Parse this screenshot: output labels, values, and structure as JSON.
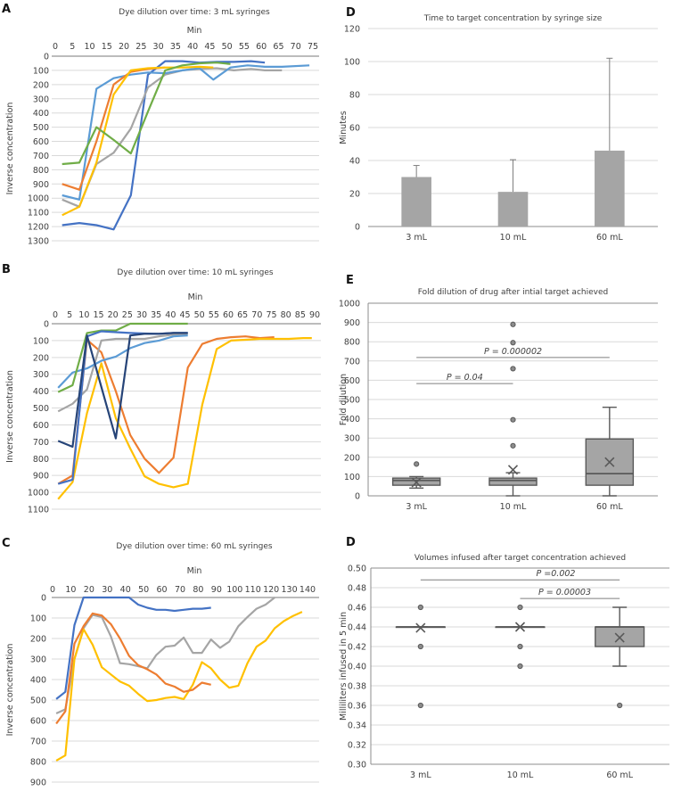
{
  "chart_data": [
    {
      "panel": "A",
      "type": "line",
      "title": "Dye dilution over time: 3 mL syringes",
      "xlabel": "Min",
      "ylabel": "Inverse concentration",
      "x_axis_position": "top",
      "y_inverted": true,
      "grid": true,
      "xlim": [
        0,
        75
      ],
      "ylim": [
        0,
        1300
      ],
      "xticks": [
        "0",
        "5",
        "10",
        "15",
        "20",
        "25",
        "30",
        "35",
        "40",
        "45",
        "50",
        "55",
        "60",
        "65",
        "70",
        "75"
      ],
      "yticks": [
        "0",
        "100",
        "200",
        "300",
        "400",
        "500",
        "600",
        "700",
        "800",
        "900",
        "1000",
        "1100",
        "1200",
        "1300"
      ],
      "series": [
        {
          "color": "#4472C4",
          "x": [
            2,
            7,
            12,
            17,
            22,
            27,
            32,
            37,
            42,
            47,
            52,
            57,
            61
          ],
          "y": [
            1190,
            1175,
            1190,
            1220,
            980,
            130,
            35,
            35,
            45,
            40,
            40,
            35,
            45
          ]
        },
        {
          "color": "#A5A5A5",
          "x": [
            2,
            7,
            12,
            17,
            22,
            27,
            32,
            37,
            42,
            47,
            52,
            57,
            61,
            66
          ],
          "y": [
            1010,
            1060,
            760,
            680,
            510,
            220,
            130,
            100,
            90,
            85,
            100,
            90,
            100,
            100
          ]
        },
        {
          "color": "#5B9BD5",
          "x": [
            2,
            7,
            12,
            17,
            22,
            27,
            32,
            37,
            42,
            46,
            51,
            56,
            61,
            66,
            74
          ],
          "y": [
            980,
            1010,
            230,
            155,
            130,
            115,
            120,
            100,
            85,
            165,
            80,
            65,
            75,
            75,
            65
          ]
        },
        {
          "color": "#ED7D31",
          "x": [
            2,
            7,
            12,
            17,
            22,
            27,
            32
          ],
          "y": [
            900,
            940,
            600,
            200,
            110,
            90,
            80
          ]
        },
        {
          "color": "#FFC000",
          "x": [
            2,
            7,
            12,
            17,
            22,
            27,
            32,
            37,
            42,
            46
          ],
          "y": [
            1120,
            1060,
            750,
            270,
            100,
            85,
            80,
            80,
            75,
            80
          ]
        },
        {
          "color": "#70AD47",
          "x": [
            2,
            7,
            12,
            17,
            22,
            27,
            32,
            37,
            42,
            47,
            51
          ],
          "y": [
            760,
            750,
            500,
            590,
            685,
            390,
            100,
            65,
            50,
            45,
            55
          ]
        }
      ]
    },
    {
      "panel": "B",
      "type": "line",
      "title": "Dye dilution over time: 10 mL syringes",
      "xlabel": "Min",
      "ylabel": "Inverse concentration",
      "x_axis_position": "top",
      "y_inverted": true,
      "grid": true,
      "xlim": [
        0,
        90
      ],
      "ylim": [
        0,
        1100
      ],
      "xticks": [
        "0",
        "5",
        "10",
        "15",
        "20",
        "25",
        "30",
        "35",
        "40",
        "45",
        "50",
        "55",
        "60",
        "65",
        "70",
        "75",
        "80",
        "85",
        "90"
      ],
      "yticks": [
        "0",
        "100",
        "200",
        "300",
        "400",
        "500",
        "600",
        "700",
        "800",
        "900",
        "1000",
        "1100"
      ],
      "series": [
        {
          "color": "#ED7D31",
          "x": [
            1,
            6,
            11,
            16,
            21,
            26,
            31,
            36,
            41,
            46,
            51,
            56,
            61,
            66,
            71,
            76
          ],
          "y": [
            950,
            900,
            95,
            170,
            400,
            660,
            800,
            885,
            795,
            260,
            120,
            90,
            80,
            75,
            85,
            80
          ]
        },
        {
          "color": "#FFC000",
          "x": [
            1,
            6,
            11,
            16,
            21,
            26,
            31,
            36,
            41,
            46,
            51,
            56,
            61,
            66,
            71,
            76,
            81,
            86,
            89
          ],
          "y": [
            1040,
            940,
            530,
            235,
            560,
            740,
            905,
            950,
            970,
            950,
            480,
            150,
            100,
            95,
            90,
            90,
            90,
            85,
            85
          ]
        },
        {
          "color": "#A5A5A5",
          "x": [
            1,
            6,
            11,
            16,
            21,
            26,
            31,
            36,
            41,
            46
          ],
          "y": [
            520,
            475,
            390,
            100,
            90,
            90,
            90,
            75,
            65,
            60
          ]
        },
        {
          "color": "#5B9BD5",
          "x": [
            1,
            6,
            11,
            16,
            21,
            26,
            31,
            36,
            41,
            46
          ],
          "y": [
            380,
            290,
            265,
            220,
            195,
            145,
            115,
            100,
            75,
            70
          ]
        },
        {
          "color": "#70AD47",
          "x": [
            1,
            6,
            11,
            16,
            21,
            26,
            31,
            36,
            41,
            46
          ],
          "y": [
            405,
            365,
            55,
            40,
            40,
            0,
            0,
            0,
            0,
            0
          ]
        },
        {
          "color": "#4472C4",
          "x": [
            1,
            6,
            11,
            16,
            21,
            26,
            31,
            36,
            41,
            46
          ],
          "y": [
            950,
            925,
            75,
            45,
            50,
            55,
            58,
            60,
            55,
            55
          ]
        },
        {
          "color": "#264478",
          "x": [
            1,
            6,
            11,
            16,
            21,
            26,
            31,
            36,
            41,
            46
          ],
          "y": [
            695,
            730,
            70,
            375,
            680,
            70,
            60,
            60,
            55,
            55
          ]
        }
      ]
    },
    {
      "panel": "C",
      "type": "line",
      "title": "Dye dilution over time: 60 mL syringes",
      "xlabel": "Min",
      "ylabel": "Inverse concentration",
      "x_axis_position": "top",
      "y_inverted": true,
      "grid": true,
      "xlim": [
        0,
        140
      ],
      "ylim": [
        0,
        900
      ],
      "xticks": [
        "0",
        "10",
        "20",
        "30",
        "40",
        "50",
        "60",
        "70",
        "80",
        "90",
        "100",
        "110",
        "120",
        "130",
        "140"
      ],
      "yticks": [
        "0",
        "100",
        "200",
        "300",
        "400",
        "500",
        "600",
        "700",
        "800",
        "900"
      ],
      "series": [
        {
          "color": "#A5A5A5",
          "x": [
            2,
            7,
            12,
            17,
            22,
            27,
            32,
            37,
            42,
            47,
            52,
            57,
            62,
            67,
            72,
            77,
            82,
            87,
            92,
            97,
            102,
            107,
            112,
            117,
            122
          ],
          "y": [
            565,
            545,
            300,
            150,
            85,
            95,
            190,
            320,
            325,
            335,
            345,
            280,
            240,
            235,
            195,
            270,
            270,
            205,
            245,
            215,
            140,
            95,
            55,
            35,
            0
          ]
        },
        {
          "color": "#FFC000",
          "x": [
            2,
            7,
            12,
            17,
            22,
            27,
            32,
            37,
            42,
            47,
            52,
            57,
            62,
            67,
            72,
            77,
            82,
            87,
            92,
            97,
            102,
            107,
            112,
            117,
            122,
            127,
            132,
            137
          ],
          "y": [
            795,
            770,
            300,
            155,
            230,
            340,
            375,
            410,
            430,
            470,
            505,
            500,
            490,
            485,
            495,
            425,
            315,
            345,
            400,
            440,
            430,
            320,
            240,
            210,
            150,
            115,
            90,
            70
          ]
        },
        {
          "color": "#ED7D31",
          "x": [
            2,
            7,
            12,
            17,
            22,
            27,
            32,
            37,
            42,
            47,
            52,
            57,
            62,
            67,
            72,
            77,
            82,
            87
          ],
          "y": [
            615,
            555,
            225,
            140,
            78,
            88,
            130,
            200,
            285,
            330,
            350,
            375,
            420,
            435,
            460,
            450,
            415,
            425
          ]
        },
        {
          "color": "#4472C4",
          "x": [
            2,
            7,
            12,
            17,
            22,
            27,
            32,
            37,
            42,
            47,
            52,
            57,
            62,
            67,
            72,
            77,
            82,
            87
          ],
          "y": [
            495,
            460,
            135,
            0,
            0,
            0,
            0,
            0,
            0,
            35,
            50,
            60,
            60,
            65,
            60,
            55,
            55,
            50
          ]
        }
      ]
    },
    {
      "panel": "D",
      "type": "bar",
      "title": "Time to target concentration by syringe size",
      "xlabel": "",
      "ylabel": "Minutes",
      "grid": true,
      "ylim": [
        0,
        120
      ],
      "yticks": [
        "0",
        "20",
        "40",
        "60",
        "80",
        "100",
        "120"
      ],
      "categories": [
        "3 mL",
        "10 mL",
        "60 mL"
      ],
      "values": [
        30,
        21,
        46
      ],
      "error_upper": [
        37,
        40.5,
        102
      ],
      "bar_color": "#A5A5A5"
    },
    {
      "panel": "E",
      "type": "box",
      "title": "Fold dilution of drug after intial target achieved",
      "xlabel": "",
      "ylabel": "Fold dilution",
      "grid": true,
      "ylim": [
        0,
        1000
      ],
      "yticks": [
        "0",
        "100",
        "200",
        "300",
        "400",
        "500",
        "600",
        "700",
        "800",
        "900",
        "1000"
      ],
      "categories": [
        "3 mL",
        "10 mL",
        "60 mL"
      ],
      "boxes": [
        {
          "min": 40,
          "q1": 55,
          "median": 80,
          "q3": 92,
          "max": 100,
          "mean": 70,
          "outliers": [
            165
          ]
        },
        {
          "min": 0,
          "q1": 55,
          "median": 80,
          "q3": 92,
          "max": 120,
          "mean": 135,
          "outliers": [
            260,
            395,
            660,
            795,
            890
          ]
        },
        {
          "min": 0,
          "q1": 55,
          "median": 115,
          "q3": 295,
          "max": 460,
          "mean": 175,
          "outliers": []
        }
      ],
      "annotations": [
        {
          "text": "P = 0.04",
          "from": "3 mL",
          "to": "10 mL",
          "y": 583
        },
        {
          "text": "P = 0.000002",
          "from": "3 mL",
          "to": "60 mL",
          "y": 718
        }
      ],
      "box_color": "#A5A5A5"
    },
    {
      "panel": "D",
      "type": "box",
      "title": "Volumes infused after target concentration achieved",
      "xlabel": "",
      "ylabel": "Milliliters infused in 5 min",
      "grid": true,
      "ylim": [
        0.3,
        0.5
      ],
      "yticks": [
        "0.30",
        "0.32",
        "0.34",
        "0.36",
        "0.38",
        "0.40",
        "0.42",
        "0.44",
        "0.46",
        "0.48",
        "0.50"
      ],
      "categories": [
        "3 mL",
        "10 mL",
        "60 mL"
      ],
      "boxes": [
        {
          "min": 0.44,
          "q1": 0.44,
          "median": 0.44,
          "q3": 0.44,
          "max": 0.44,
          "mean": 0.439,
          "outliers": [
            0.46,
            0.42,
            0.36
          ]
        },
        {
          "min": 0.44,
          "q1": 0.44,
          "median": 0.44,
          "q3": 0.44,
          "max": 0.44,
          "mean": 0.44,
          "outliers": [
            0.46,
            0.42,
            0.4
          ]
        },
        {
          "min": 0.4,
          "q1": 0.42,
          "median": 0.44,
          "q3": 0.44,
          "max": 0.46,
          "mean": 0.429,
          "outliers": [
            0.36
          ]
        }
      ],
      "annotations": [
        {
          "text": "P =0.002",
          "from": "3 mL",
          "to": "60 mL",
          "y": 0.488
        },
        {
          "text": "P = 0.00003",
          "from": "10 mL",
          "to": "60 mL",
          "y": 0.469
        }
      ],
      "box_color": "#A5A5A5"
    }
  ]
}
